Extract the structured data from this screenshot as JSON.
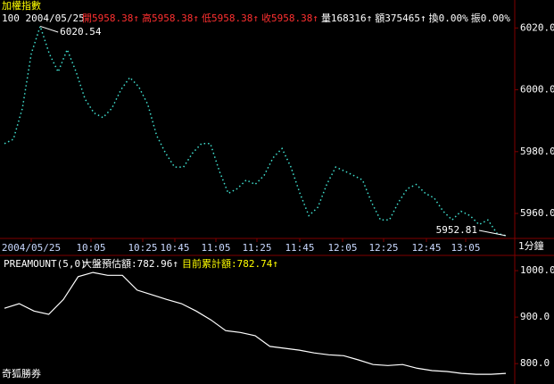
{
  "header": {
    "title": "加權指數",
    "info": "100 2004/05/25",
    "quotes": [
      {
        "text": "開5958.38↑",
        "color": "#ff3030"
      },
      {
        "text": "高5958.38↑",
        "color": "#ff3030"
      },
      {
        "text": "低5958.38↑",
        "color": "#ff3030"
      },
      {
        "text": "收5958.38↑",
        "color": "#ff3030"
      },
      {
        "text": "量168316↑",
        "color": "#ffffff"
      },
      {
        "text": "額375465↑",
        "color": "#ffffff"
      },
      {
        "text": "換0.00%",
        "color": "#ffffff"
      },
      {
        "text": "振0.00%",
        "color": "#ffffff"
      }
    ]
  },
  "chart_data": [
    {
      "type": "line",
      "color": "#40e0d0",
      "values": [
        5982.6,
        5984,
        5994,
        6011.7,
        6020.54,
        6011.7,
        6005.8,
        6013,
        6005.8,
        5997,
        5992.5,
        5991,
        5994,
        6000,
        6004,
        6001,
        5995.3,
        5985.2,
        5979.5,
        5975,
        5975,
        5979.5,
        5982.6,
        5982.6,
        5973.7,
        5966.5,
        5968,
        5970.8,
        5969.4,
        5972.3,
        5978,
        5981,
        5975,
        5966.5,
        5959.3,
        5962,
        5969.4,
        5975,
        5973.7,
        5972.3,
        5970.8,
        5963.6,
        5957.9,
        5957.9,
        5963.6,
        5968,
        5969.4,
        5966.5,
        5965,
        5960.7,
        5957.9,
        5960.7,
        5959.3,
        5956.4,
        5957.9,
        5953.6,
        5952.81
      ],
      "ylim": [
        5952.5,
        6025
      ],
      "yticks": [
        {
          "value": 6020,
          "label": "6020.0"
        },
        {
          "value": 6000,
          "label": "6000.0"
        },
        {
          "value": 5980,
          "label": "5980.0"
        },
        {
          "value": 5960,
          "label": "5960.0"
        }
      ],
      "annotations": [
        "6020.54",
        "5952.81"
      ]
    },
    {
      "type": "line",
      "color": "#ffffff",
      "title": "PREAMOUNT(5,0)",
      "legend": [
        {
          "text": "大盤預估額:782.96↑",
          "color": "#ffffff"
        },
        {
          "text": "目前累計額:782.74↑",
          "color": "#ffff00"
        }
      ],
      "values": [
        919,
        929,
        913,
        906,
        938,
        987,
        996,
        990,
        990,
        958,
        948,
        938,
        929,
        913,
        894,
        871,
        867,
        860,
        837,
        833,
        829,
        823,
        819,
        817,
        808,
        798,
        796,
        798,
        790,
        785,
        783,
        779,
        777,
        777,
        779
      ],
      "ylim": [
        760,
        1027
      ],
      "yticks": [
        {
          "value": 1000,
          "label": "1000.0"
        },
        {
          "value": 900,
          "label": "900.0"
        },
        {
          "value": 800,
          "label": "800.0"
        }
      ]
    }
  ],
  "time_axis": {
    "labels": [
      "2004/05/25",
      "10:05",
      "10:25",
      "10:45",
      "11:05",
      "11:25",
      "11:45",
      "12:05",
      "12:25",
      "12:45",
      "13:05"
    ],
    "unit": "1分鐘"
  },
  "footer": "奇狐勝券"
}
